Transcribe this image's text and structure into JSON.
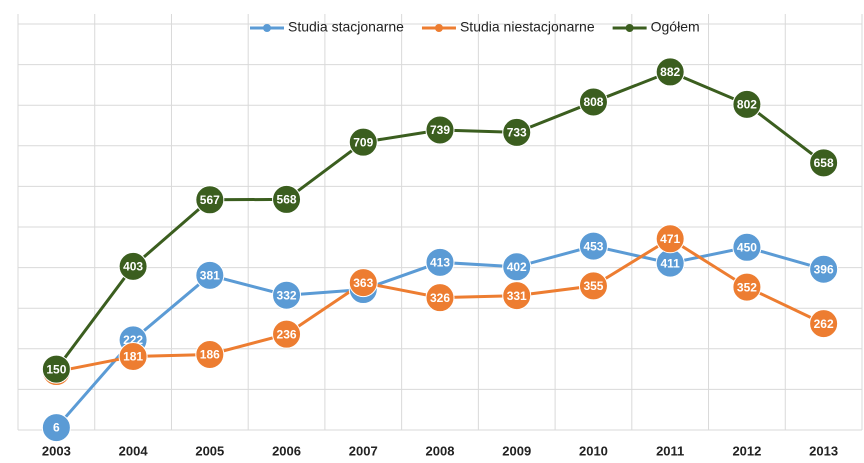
{
  "chart_data": {
    "type": "line",
    "categories": [
      "2003",
      "2004",
      "2005",
      "2006",
      "2007",
      "2008",
      "2009",
      "2010",
      "2011",
      "2012",
      "2013"
    ],
    "series": [
      {
        "name": "Studia stacjonarne",
        "color": "#5b9bd5",
        "values": [
          6,
          222,
          381,
          332,
          346,
          413,
          402,
          453,
          411,
          450,
          396
        ]
      },
      {
        "name": "Studia niestacjonarne",
        "color": "#ed7d31",
        "values": [
          144,
          181,
          186,
          236,
          363,
          326,
          331,
          355,
          471,
          352,
          262
        ]
      },
      {
        "name": "Ogółem",
        "color": "#3b5e1f",
        "values": [
          150,
          403,
          567,
          568,
          709,
          739,
          733,
          808,
          882,
          802,
          658
        ]
      }
    ],
    "ylim": [
      0,
      1000
    ],
    "yticks": [
      0,
      100,
      200,
      300,
      400,
      500,
      600,
      700,
      800,
      900,
      1000
    ],
    "grid": true,
    "legend": "top"
  }
}
